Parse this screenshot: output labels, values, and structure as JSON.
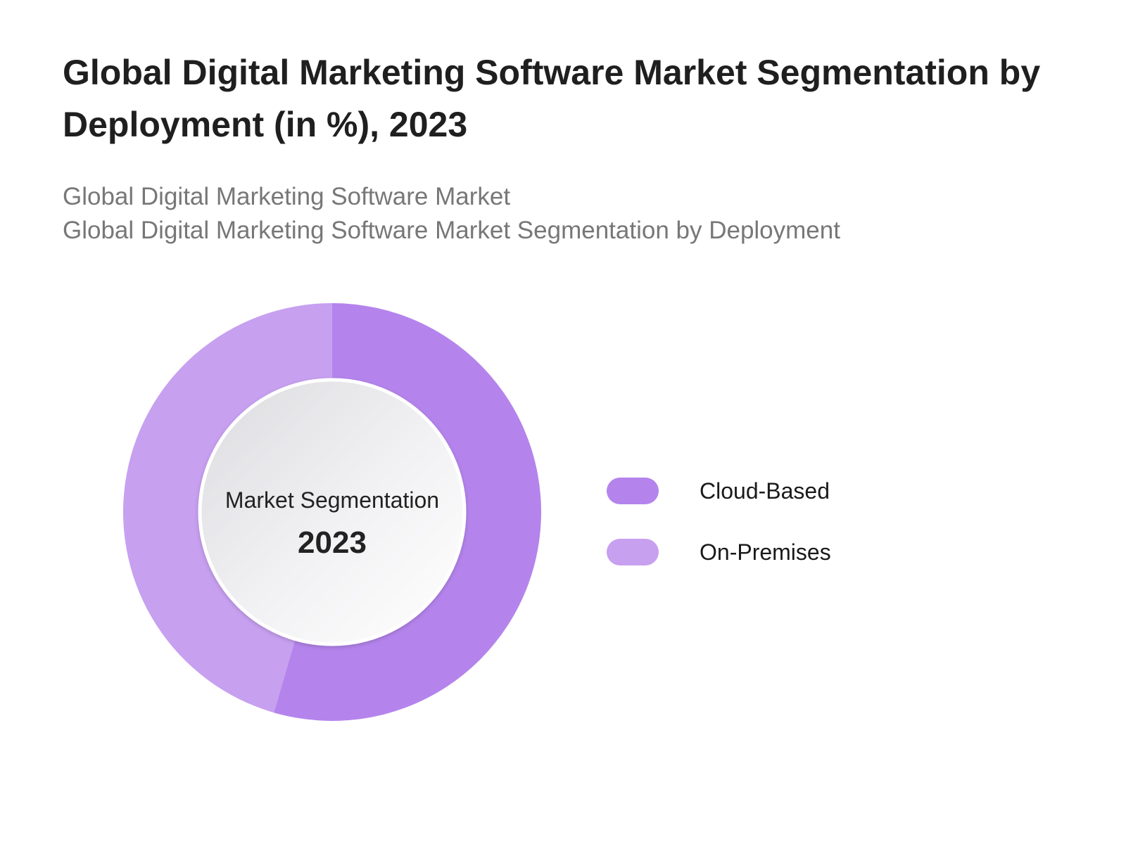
{
  "title": "Global Digital Marketing Software Market Segmentation by Deployment (in %), 2023",
  "subtitle": [
    "Global Digital Marketing Software Market",
    "Global Digital Marketing Software Market Segmentation by Deployment"
  ],
  "chart_data": {
    "type": "pie",
    "variant": "donut",
    "center_label": "Market Segmentation",
    "center_value": "2023",
    "categories": [
      "Cloud-Based",
      "On-Premises"
    ],
    "values": [
      54.5,
      45.5
    ],
    "colors": [
      "#b484ec",
      "#c7a0f0"
    ],
    "legend_position": "right"
  }
}
